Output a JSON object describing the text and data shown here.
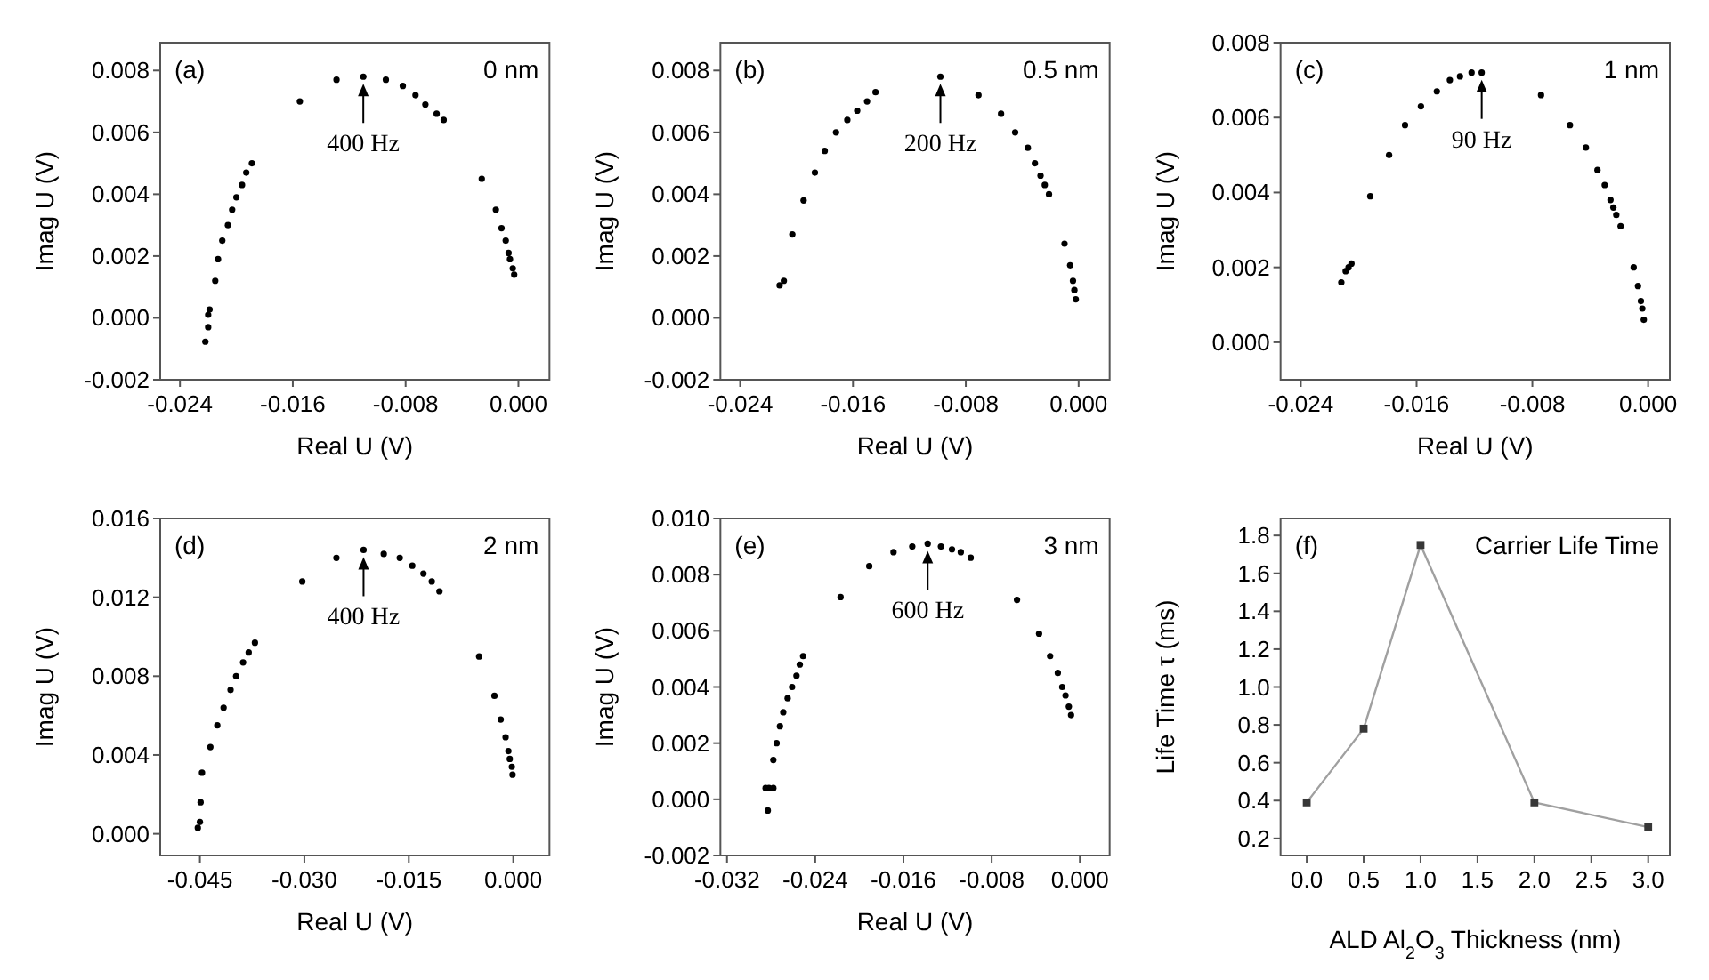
{
  "chart_data": [
    {
      "type": "scatter",
      "xlabel": "Real U (V)",
      "ylabel": "Imag U (V)",
      "color": "#000000",
      "marker": "circle",
      "xlim": [
        -0.0254,
        0.0022
      ],
      "ylim": [
        -0.002,
        0.0089
      ],
      "xticks": [
        -0.024,
        -0.016,
        -0.008,
        {
          "value": 0,
          "label": "0.000"
        }
      ],
      "yticks": [
        -0.002,
        {
          "value": 0,
          "label": "0.000"
        },
        0.002,
        0.004,
        0.006,
        0.008
      ],
      "x": [
        -0.0222,
        -0.022,
        -0.022,
        -0.0219,
        -0.0215,
        -0.0213,
        -0.021,
        -0.0206,
        -0.0203,
        -0.02,
        -0.0196,
        -0.0193,
        -0.0189,
        -0.0155,
        -0.0129,
        -0.011,
        -0.0094,
        -0.0082,
        -0.0073,
        -0.0066,
        -0.0058,
        -0.0053,
        -0.0026,
        -0.0016,
        -0.0012,
        -0.0009,
        -0.0007,
        -0.0006,
        -0.0004,
        -0.0003
      ],
      "values": [
        -0.00077,
        -0.0003,
        0.0001,
        0.00027,
        0.0012,
        0.0019,
        0.0025,
        0.003,
        0.0035,
        0.0039,
        0.0043,
        0.0047,
        0.005,
        0.007,
        0.0077,
        0.0078,
        0.0077,
        0.0075,
        0.0072,
        0.0069,
        0.0066,
        0.0064,
        0.0045,
        0.0035,
        0.0029,
        0.0025,
        0.0021,
        0.0019,
        0.0016,
        0.0014
      ],
      "annotations": [
        "(a)",
        "0 nm",
        {
          "text": "400 Hz",
          "x": -0.011,
          "y": 0.0078
        }
      ]
    },
    {
      "type": "scatter",
      "xlabel": "Real U (V)",
      "ylabel": "Imag U (V)",
      "color": "#000000",
      "marker": "circle",
      "xlim": [
        -0.0254,
        0.0022
      ],
      "ylim": [
        -0.002,
        0.0089
      ],
      "xticks": [
        -0.024,
        -0.016,
        -0.008,
        {
          "value": 0,
          "label": "0.000"
        }
      ],
      "yticks": [
        -0.002,
        {
          "value": 0,
          "label": "0.000"
        },
        0.002,
        0.004,
        0.006,
        0.008
      ],
      "x": [
        -0.0212,
        -0.0209,
        -0.0203,
        -0.0195,
        -0.0187,
        -0.018,
        -0.0172,
        -0.0164,
        -0.0157,
        -0.015,
        -0.0144,
        -0.0098,
        -0.0071,
        -0.0055,
        -0.0045,
        -0.0036,
        -0.0031,
        -0.0027,
        -0.0024,
        -0.0021,
        -0.001,
        -0.0006,
        -0.0004,
        -0.0003,
        -0.0002
      ],
      "values": [
        0.00105,
        0.0012,
        0.0027,
        0.0038,
        0.0047,
        0.0054,
        0.006,
        0.0064,
        0.0067,
        0.007,
        0.0073,
        0.0078,
        0.0072,
        0.0066,
        0.006,
        0.0055,
        0.005,
        0.0046,
        0.0043,
        0.004,
        0.0024,
        0.0017,
        0.0012,
        0.0009,
        0.0006
      ],
      "annotations": [
        "(b)",
        "0.5 nm",
        {
          "text": "200 Hz",
          "x": -0.0098,
          "y": 0.0078
        }
      ]
    },
    {
      "type": "scatter",
      "xlabel": "Real U (V)",
      "ylabel": "Imag U (V)",
      "color": "#000000",
      "marker": "circle",
      "xlim": [
        -0.0254,
        0.0015
      ],
      "ylim": [
        -0.001,
        0.008
      ],
      "xticks": [
        -0.024,
        -0.016,
        -0.008,
        {
          "value": 0,
          "label": "0.000"
        }
      ],
      "yticks": [
        {
          "value": 0,
          "label": "0.000"
        },
        0.002,
        0.004,
        0.006,
        0.008
      ],
      "x": [
        -0.0212,
        -0.0209,
        -0.0207,
        -0.0205,
        -0.0192,
        -0.0179,
        -0.0168,
        -0.0157,
        -0.0146,
        -0.0137,
        -0.013,
        -0.0122,
        -0.0115,
        -0.0074,
        -0.0054,
        -0.0043,
        -0.0035,
        -0.003,
        -0.0026,
        -0.0024,
        -0.0022,
        -0.0019,
        -0.001,
        -0.0007,
        -0.0005,
        -0.0004,
        -0.0003
      ],
      "values": [
        0.0016,
        0.0019,
        0.002,
        0.0021,
        0.0039,
        0.005,
        0.0058,
        0.0063,
        0.0067,
        0.007,
        0.0071,
        0.0072,
        0.0072,
        0.0066,
        0.0058,
        0.0052,
        0.0046,
        0.0042,
        0.0038,
        0.0036,
        0.0034,
        0.0031,
        0.002,
        0.0015,
        0.0011,
        0.0009,
        0.0006
      ],
      "annotations": [
        "(c)",
        "1 nm",
        {
          "text": "90 Hz",
          "x": -0.0115,
          "y": 0.0072
        }
      ]
    },
    {
      "type": "scatter",
      "xlabel": "Real U (V)",
      "ylabel": "Imag U (V)",
      "color": "#000000",
      "marker": "circle",
      "xlim": [
        -0.0507,
        0.0052
      ],
      "ylim": [
        -0.0011,
        0.016
      ],
      "xticks": [
        -0.045,
        {
          "value": -0.03,
          "label": "-0.030"
        },
        -0.015,
        {
          "value": 0,
          "label": "0.000"
        }
      ],
      "yticks": [
        {
          "value": 0,
          "label": "0.000"
        },
        0.004,
        0.008,
        0.012,
        0.016
      ],
      "x": [
        -0.0453,
        -0.045,
        -0.0449,
        -0.0447,
        -0.0435,
        -0.0425,
        -0.0416,
        -0.0406,
        -0.0398,
        -0.0388,
        -0.038,
        -0.0371,
        -0.0303,
        -0.0254,
        -0.0215,
        -0.0186,
        -0.0163,
        -0.0145,
        -0.0129,
        -0.0117,
        -0.0106,
        -0.0049,
        -0.0027,
        -0.0018,
        -0.0011,
        -0.0007,
        -0.0005,
        -0.0002,
        -0.0001
      ],
      "values": [
        0.0003,
        0.0006,
        0.0016,
        0.0031,
        0.0044,
        0.0055,
        0.0064,
        0.0073,
        0.008,
        0.0087,
        0.0092,
        0.0097,
        0.0128,
        0.014,
        0.0144,
        0.0142,
        0.014,
        0.0136,
        0.0132,
        0.0128,
        0.0123,
        0.009,
        0.007,
        0.0058,
        0.0049,
        0.0042,
        0.0038,
        0.0034,
        0.003
      ],
      "annotations": [
        "(d)",
        "2 nm",
        {
          "text": "400 Hz",
          "x": -0.0215,
          "y": 0.0144
        }
      ]
    },
    {
      "type": "scatter",
      "xlabel": "Real U (V)",
      "ylabel": "Imag U (V)",
      "color": "#000000",
      "marker": "circle",
      "xlim": [
        -0.0326,
        0.0027
      ],
      "ylim": [
        -0.002,
        0.01
      ],
      "xticks": [
        -0.032,
        -0.024,
        -0.016,
        -0.008,
        {
          "value": 0,
          "label": "0.000"
        }
      ],
      "yticks": [
        -0.002,
        {
          "value": 0,
          "label": "0.000"
        },
        0.002,
        0.004,
        0.006,
        0.008,
        {
          "value": 0.01,
          "label": "0.010"
        }
      ],
      "x": [
        -0.0283,
        -0.0285,
        -0.0282,
        -0.0278,
        -0.0278,
        -0.0275,
        -0.0272,
        -0.0269,
        -0.0265,
        -0.0261,
        -0.0257,
        -0.0254,
        -0.0251,
        -0.0217,
        -0.0191,
        -0.0169,
        -0.0152,
        -0.0138,
        -0.0126,
        -0.0116,
        -0.0108,
        -0.0099,
        -0.0057,
        -0.0037,
        -0.0027,
        -0.002,
        -0.0016,
        -0.0013,
        -0.001,
        -0.0008
      ],
      "values": [
        -0.0004,
        0.0004,
        0.0004,
        0.0004,
        0.0014,
        0.002,
        0.0026,
        0.0031,
        0.0036,
        0.004,
        0.0044,
        0.0048,
        0.0051,
        0.0072,
        0.0083,
        0.0088,
        0.009,
        0.0091,
        0.009,
        0.0089,
        0.0088,
        0.0086,
        0.0071,
        0.0059,
        0.0051,
        0.0045,
        0.004,
        0.0037,
        0.0033,
        0.003
      ],
      "annotations": [
        "(e)",
        "3 nm",
        {
          "text": "600 Hz",
          "x": -0.0138,
          "y": 0.0091
        }
      ]
    },
    {
      "type": "line",
      "xlabel": "ALD Al$_{2}$O$_{3}$ Thickness (nm)",
      "ylabel": "Life Time τ (ms)",
      "color": "#a0a0a0",
      "marker": "square",
      "xlim": [
        -0.23,
        3.19
      ],
      "ylim": [
        0.11,
        1.89
      ],
      "xticks": [
        {
          "value": 0,
          "label": "0.0"
        },
        0.5,
        {
          "value": 1,
          "label": "1.0"
        },
        1.5,
        {
          "value": 2,
          "label": "2.0"
        },
        2.5,
        {
          "value": 3,
          "label": "3.0"
        }
      ],
      "yticks": [
        0.2,
        0.4,
        0.6,
        0.8,
        {
          "value": 1,
          "label": "1.0"
        },
        1.2,
        1.4,
        1.6,
        1.8
      ],
      "x": [
        0,
        0.5,
        1,
        2,
        3
      ],
      "values": [
        0.39,
        0.78,
        1.75,
        0.39,
        0.26
      ],
      "annotations": [
        "(f)",
        "Carrier Life Time"
      ]
    }
  ]
}
